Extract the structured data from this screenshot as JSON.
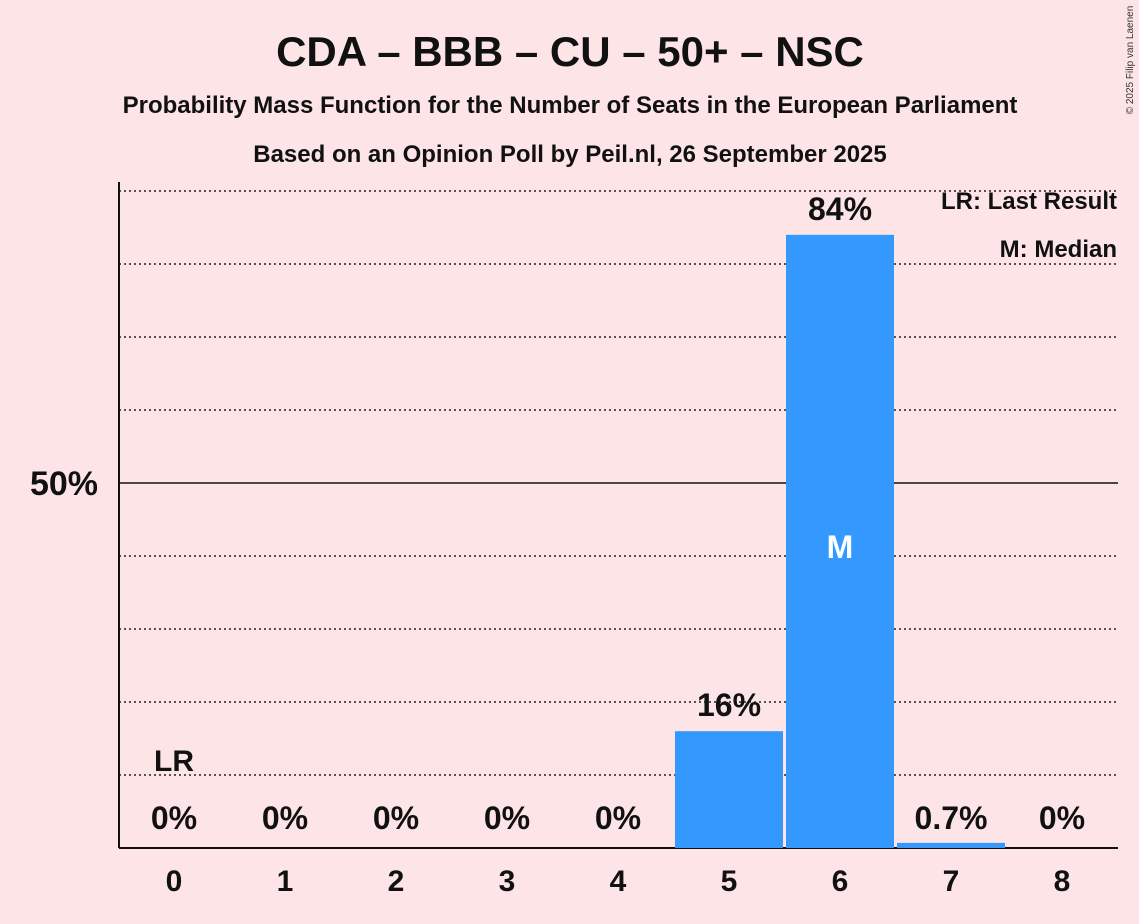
{
  "chart_data": {
    "type": "bar",
    "title": "CDA – BBB – CU – 50+ – NSC",
    "subtitle": "Probability Mass Function for the Number of Seats in the European Parliament",
    "subtitle2": "Based on an Opinion Poll by Peil.nl, 26 September 2025",
    "categories": [
      "0",
      "1",
      "2",
      "3",
      "4",
      "5",
      "6",
      "7",
      "8"
    ],
    "values": [
      0,
      0,
      0,
      0,
      0,
      16,
      84,
      0.7,
      0
    ],
    "labels": [
      "0%",
      "0%",
      "0%",
      "0%",
      "0%",
      "16%",
      "84%",
      "0.7%",
      "0%"
    ],
    "ylim": [
      0,
      100
    ],
    "yticks": [
      {
        "value": 50,
        "label": "50%"
      }
    ],
    "grid_step": 10,
    "last_result": {
      "category": "0",
      "label": "LR"
    },
    "median": {
      "category": "6",
      "label": "M"
    },
    "legend": [
      "LR: Last Result",
      "M: Median"
    ],
    "legend_position": "top-right",
    "bar_color": "#3399ff",
    "copyright": "© 2025 Filip van Laenen"
  }
}
